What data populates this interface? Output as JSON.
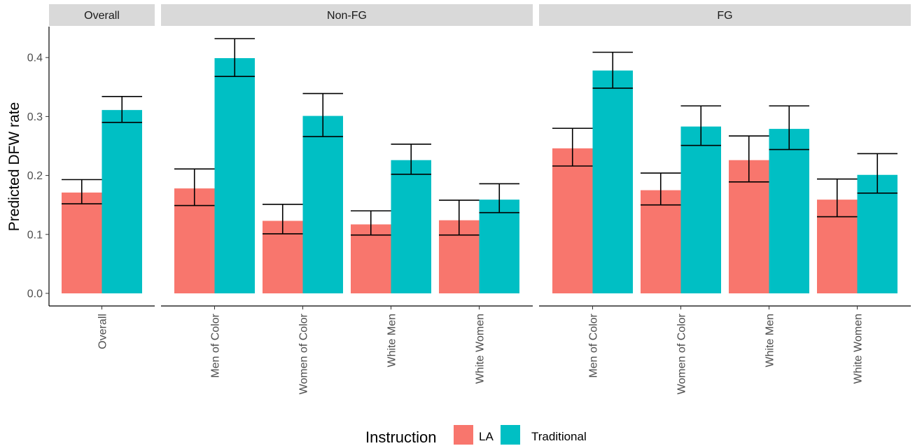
{
  "chart_data": {
    "type": "bar",
    "ylabel": "Predicted DFW rate",
    "ylim": [
      0,
      0.45
    ],
    "yticks": [
      "0.0",
      "0.1",
      "0.2",
      "0.3",
      "0.4"
    ],
    "grid": false,
    "legend": {
      "title": "Instruction",
      "position": "bottom",
      "entries": [
        {
          "name": "LA",
          "color": "#F8766D"
        },
        {
          "name": "Traditional",
          "color": "#00BFC4"
        }
      ]
    },
    "panels": [
      {
        "title": "Overall",
        "categories": [
          "Overall"
        ],
        "series": [
          {
            "name": "LA",
            "values": [
              0.171
            ],
            "lower": [
              0.152
            ],
            "upper": [
              0.193
            ]
          },
          {
            "name": "Traditional",
            "values": [
              0.311
            ],
            "lower": [
              0.29
            ],
            "upper": [
              0.334
            ]
          }
        ]
      },
      {
        "title": "Non-FG",
        "categories": [
          "Men of Color",
          "Women of Color",
          "White Men",
          "White Women"
        ],
        "series": [
          {
            "name": "LA",
            "values": [
              0.178,
              0.123,
              0.117,
              0.124
            ],
            "lower": [
              0.149,
              0.101,
              0.099,
              0.099
            ],
            "upper": [
              0.211,
              0.151,
              0.14,
              0.158
            ]
          },
          {
            "name": "Traditional",
            "values": [
              0.399,
              0.301,
              0.226,
              0.159
            ],
            "lower": [
              0.368,
              0.266,
              0.202,
              0.137
            ],
            "upper": [
              0.432,
              0.339,
              0.253,
              0.186
            ]
          }
        ]
      },
      {
        "title": "FG",
        "categories": [
          "Men of Color",
          "Women of Color",
          "White Men",
          "White Women"
        ],
        "series": [
          {
            "name": "LA",
            "values": [
              0.246,
              0.175,
              0.226,
              0.159
            ],
            "lower": [
              0.216,
              0.15,
              0.189,
              0.13
            ],
            "upper": [
              0.28,
              0.204,
              0.267,
              0.194
            ]
          },
          {
            "name": "Traditional",
            "values": [
              0.378,
              0.283,
              0.279,
              0.201
            ],
            "lower": [
              0.348,
              0.251,
              0.244,
              0.17
            ],
            "upper": [
              0.409,
              0.318,
              0.318,
              0.237
            ]
          }
        ]
      }
    ]
  }
}
